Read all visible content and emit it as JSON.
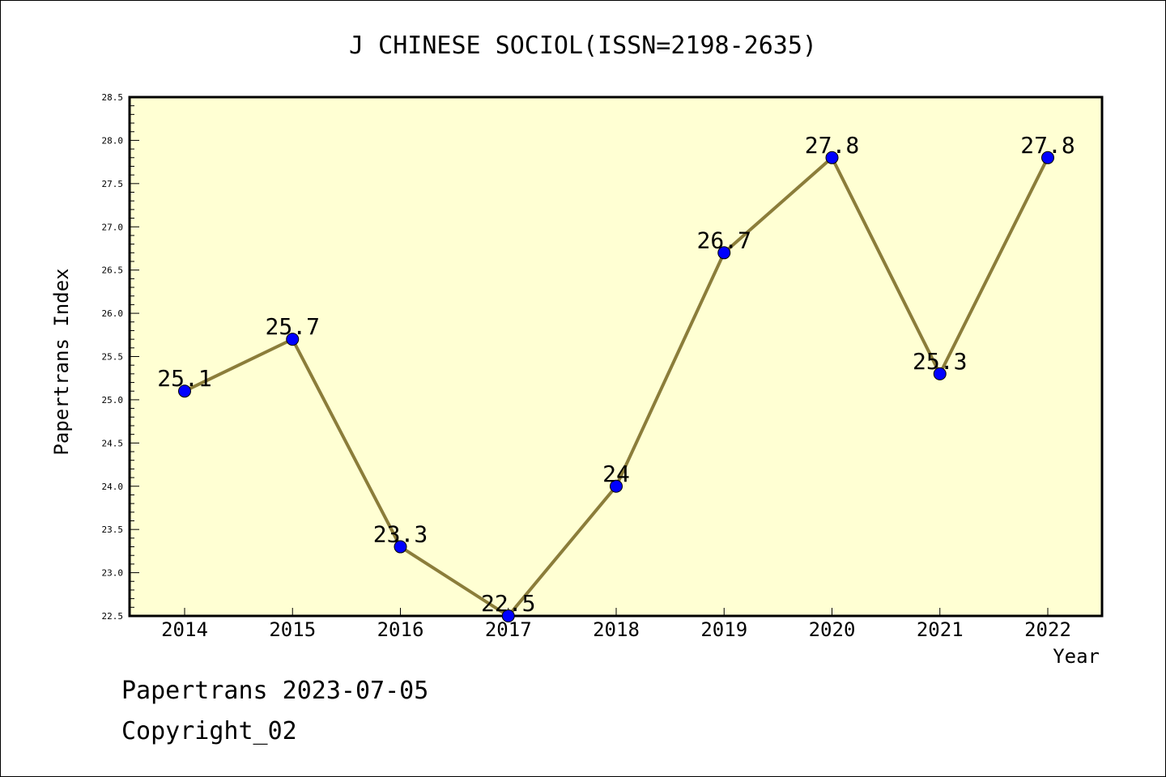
{
  "chart_data": {
    "type": "line",
    "title": "J CHINESE SOCIOL(ISSN=2198-2635)",
    "xlabel": "Year",
    "ylabel": "Papertrans Index",
    "categories": [
      "2014",
      "2015",
      "2016",
      "2017",
      "2018",
      "2019",
      "2020",
      "2021",
      "2022"
    ],
    "values": [
      25.1,
      25.7,
      23.3,
      22.5,
      24,
      26.7,
      27.8,
      25.3,
      27.8
    ],
    "data_labels": [
      "25.1",
      "25.7",
      "23.3",
      "22.5",
      "24",
      "26.7",
      "27.8",
      "25.3",
      "27.8"
    ],
    "ylim": [
      22.5,
      28.5
    ],
    "yticks": [
      "22.5",
      "23.0",
      "23.5",
      "24.0",
      "24.5",
      "25.0",
      "25.5",
      "26.0",
      "26.5",
      "27.0",
      "27.5",
      "28.0",
      "28.5"
    ],
    "grid": false,
    "legend": "none",
    "colors": {
      "plot_background": "#ffffd3",
      "line": "#8b7d3a",
      "marker": "#0000ff"
    }
  },
  "footer": {
    "line1": "Papertrans 2023-07-05",
    "line2": "Copyright_02"
  }
}
